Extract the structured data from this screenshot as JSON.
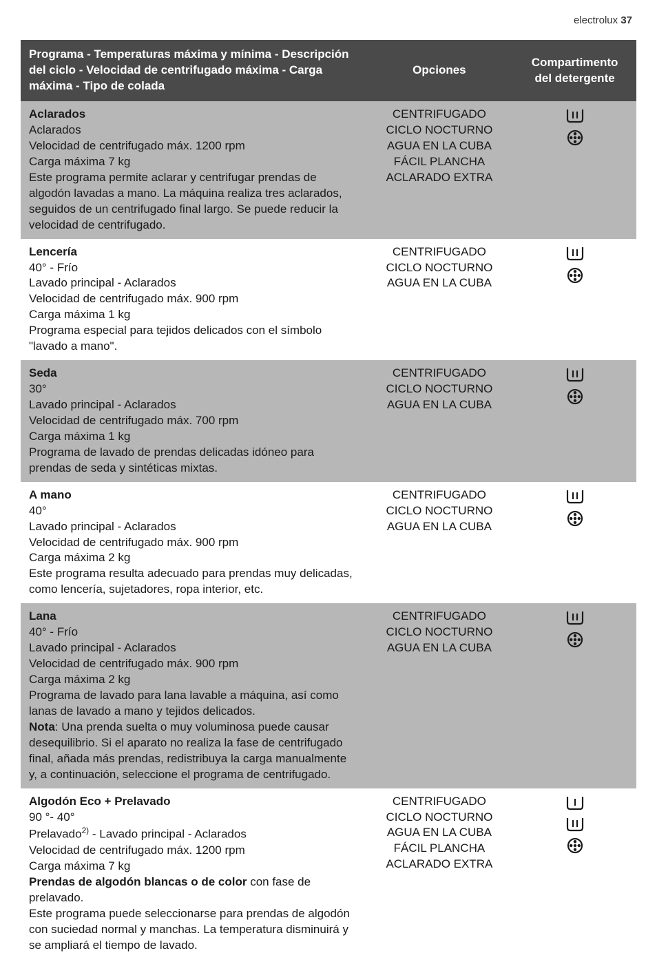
{
  "page_header": {
    "brand": "electrolux",
    "page_number": "37"
  },
  "colors": {
    "header_bg": "#4a4a4a",
    "header_fg": "#ffffff",
    "row_dark_bg": "#b7b7b7",
    "row_light_bg": "#ffffff",
    "text": "#1a1a1a",
    "icon": "#1a1a1a"
  },
  "columns": {
    "c1": "Programa - Temperaturas máxima y mínima - Descripción del ciclo - Velocidad de centrifugado máxima - Carga máxima - Tipo de colada",
    "c2": "Opciones",
    "c3": "Compartimento del detergente"
  },
  "rows": [
    {
      "shade": "dark",
      "title": "Aclarados",
      "lines": [
        "Aclarados",
        "Velocidad de centrifugado máx. 1200 rpm",
        "Carga máxima 7 kg",
        "Este programa permite aclarar y centrifugar prendas de algodón lavadas a mano. La máquina realiza tres aclarados, seguidos de un centrifugado final largo. Se puede reducir la velocidad de centrifugado."
      ],
      "options": [
        "CENTRIFUGADO",
        "CICLO NOCTURNO",
        "AGUA EN LA CUBA",
        "FÁCIL PLANCHA",
        "ACLARADO EXTRA"
      ],
      "compartments": [
        "softener",
        "flower"
      ]
    },
    {
      "shade": "light",
      "title": "Lencería",
      "lines": [
        "40° - Frío",
        "Lavado principal - Aclarados",
        "Velocidad de centrifugado máx. 900 rpm",
        "Carga máxima 1 kg",
        "Programa especial para tejidos delicados con el símbolo \"lavado a mano\"."
      ],
      "options": [
        "CENTRIFUGADO",
        "CICLO NOCTURNO",
        "AGUA EN LA CUBA"
      ],
      "compartments": [
        "softener",
        "flower"
      ]
    },
    {
      "shade": "dark",
      "title": "Seda",
      "lines": [
        "30°",
        "Lavado principal - Aclarados",
        "Velocidad de centrifugado máx. 700 rpm",
        "Carga máxima 1 kg",
        "Programa de lavado de prendas delicadas idóneo para prendas de seda y sintéticas mixtas."
      ],
      "options": [
        "CENTRIFUGADO",
        "CICLO NOCTURNO",
        "AGUA EN LA CUBA"
      ],
      "compartments": [
        "softener",
        "flower"
      ]
    },
    {
      "shade": "light",
      "title": "A mano",
      "lines": [
        "40°",
        "Lavado principal - Aclarados",
        "Velocidad de centrifugado máx. 900 rpm",
        "Carga máxima 2 kg",
        "Este programa resulta adecuado para prendas muy delicadas, como lencería, sujetadores, ropa interior, etc."
      ],
      "options": [
        "CENTRIFUGADO",
        "CICLO NOCTURNO",
        "AGUA EN LA CUBA"
      ],
      "compartments": [
        "softener",
        "flower"
      ]
    },
    {
      "shade": "dark",
      "title": "Lana",
      "lines": [
        "40° - Frío",
        "Lavado principal - Aclarados",
        "Velocidad de centrifugado máx. 900 rpm",
        "Carga máxima 2 kg",
        "Programa de lavado para lana lavable a máquina, así como lanas de lavado a mano y tejidos delicados."
      ],
      "nota_label": "Nota",
      "nota_text": ": Una prenda suelta o muy voluminosa puede causar desequilibrio. Si el aparato no realiza la fase de centrifugado final, añada más prendas, redistribuya la carga manualmente y, a continuación, seleccione el programa de centrifugado.",
      "options": [
        "CENTRIFUGADO",
        "CICLO NOCTURNO",
        "AGUA EN LA CUBA"
      ],
      "compartments": [
        "softener",
        "flower"
      ]
    },
    {
      "shade": "light",
      "title": "Algodón Eco + Prelavado",
      "lines": [
        "90 °- 40°"
      ],
      "prelavado_prefix": "Prelavado",
      "prelavado_sup": "2)",
      "prelavado_suffix": " - Lavado principal - Aclarados",
      "lines2": [
        "Velocidad de centrifugado máx. 1200 rpm",
        "Carga máxima 7 kg"
      ],
      "bold_line": "Prendas de algodón blancas o de color",
      "bold_line_suffix": " con fase de prelavado.",
      "tail": "Este programa puede seleccionarse para prendas de algodón con suciedad normal y manchas. La temperatura disminuirá y se ampliará el tiempo de lavado.",
      "options": [
        "CENTRIFUGADO",
        "CICLO NOCTURNO",
        "AGUA EN LA CUBA",
        "FÁCIL PLANCHA",
        "ACLARADO EXTRA"
      ],
      "compartments": [
        "prewash",
        "softener",
        "flower"
      ]
    }
  ]
}
